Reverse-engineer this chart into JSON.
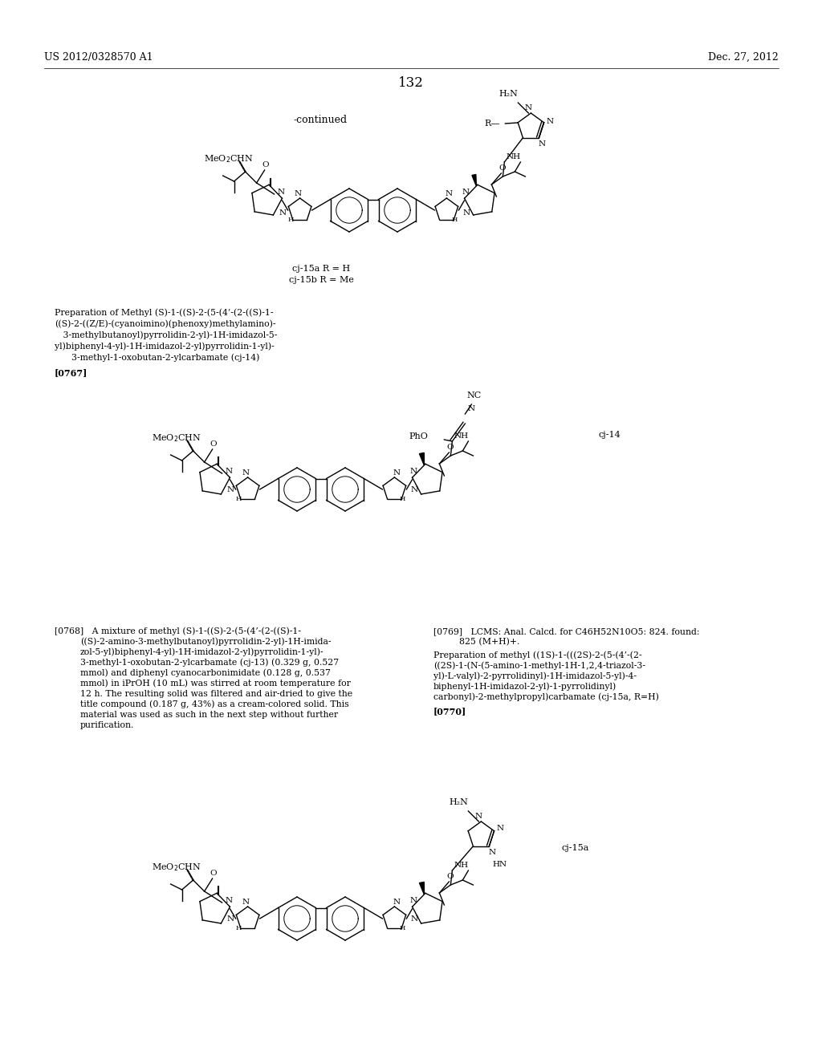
{
  "bg_color": "#ffffff",
  "page_number": "132",
  "header_left": "US 2012/0328570 A1",
  "header_right": "Dec. 27, 2012",
  "continued_label": "-continued",
  "cj15_label_a": "cj-15a R = H",
  "cj15_label_b": "cj-15b R = Me",
  "cj14_label": "cj-14",
  "cj15a_label": "cj-15a",
  "prep1_lines": [
    "Preparation of Methyl (S)-1-((S)-2-(5-(4’-(2-((S)-1-",
    "((S)-2-((Z/E)-(cyanoimino)(phenoxy)methylamino)-",
    "   3-methylbutanoyl)pyrrolidin-2-yl)-1H-imidazol-5-",
    "yl)biphenyl-4-yl)-1H-imidazol-2-yl)pyrrolidin-1-yl)-",
    "      3-methyl-1-oxobutan-2-ylcarbamate (cj-14)"
  ],
  "para_0767": "[0767]",
  "p768_lines": [
    "[0768]   A mixture of methyl (S)-1-((S)-2-(5-(4’-(2-((S)-1-",
    "((S)-2-amino-3-methylbutanoyl)pyrrolidin-2-yl)-1H-imida-",
    "zol-5-yl)biphenyl-4-yl)-1H-imidazol-2-yl)pyrrolidin-1-yl)-",
    "3-methyl-1-oxobutan-2-ylcarbamate (cj-13) (0.329 g, 0.527",
    "mmol) and diphenyl cyanocarbonimidate (0.128 g, 0.537",
    "mmol) in iPrOH (10 mL) was stirred at room temperature for",
    "12 h. The resulting solid was filtered and air-dried to give the",
    "title compound (0.187 g, 43%) as a cream-colored solid. This",
    "material was used as such in the next step without further",
    "purification."
  ],
  "p769_lines": [
    "[0769]   LCMS: Anal. Calcd. for C46H52N10O5: 824. found:",
    "825 (M+H)+."
  ],
  "prep2_lines": [
    "Preparation of methyl ((1S)-1-(((2S)-2-(5-(4’-(2-",
    "((2S)-1-(N-(5-amino-1-methyl-1H-1,2,4-triazol-3-",
    "yl)-L-valyl)-2-pyrrolidinyl)-1H-imidazol-5-yl)-4-",
    "biphenyl-1H-imidazol-2-yl)-1-pyrrolidinyl)",
    "carbonyl)-2-methylpropyl)carbamate (cj-15a, R=H)"
  ],
  "para_0770": "[0770]"
}
